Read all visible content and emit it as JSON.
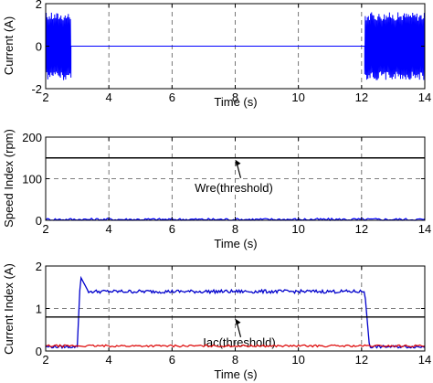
{
  "chart_data": [
    {
      "type": "line",
      "xlabel": "Time (s)",
      "ylabel": "Current (A)",
      "xlim": [
        2,
        14
      ],
      "ylim": [
        -2,
        2
      ],
      "xticks": [
        2,
        4,
        6,
        8,
        10,
        12,
        14
      ],
      "yticks": [
        -2,
        0,
        2
      ],
      "grid": "dashed",
      "series": [
        {
          "color": "#0000ff",
          "style": "oscillating",
          "segments": [
            {
              "x_start": 2.0,
              "x_end": 2.8,
              "amplitude": 1.6
            },
            {
              "x_start": 2.8,
              "x_end": 12.1,
              "amplitude": 0
            },
            {
              "x_start": 12.1,
              "x_end": 14.0,
              "amplitude": 1.6
            }
          ]
        }
      ]
    },
    {
      "type": "line",
      "xlabel": "Time (s)",
      "ylabel": "Speed Index (rpm)",
      "xlim": [
        2,
        14
      ],
      "ylim": [
        0,
        200
      ],
      "xticks": [
        2,
        4,
        6,
        8,
        10,
        12,
        14
      ],
      "yticks": [
        0,
        100,
        200
      ],
      "grid": "dashed",
      "series": [
        {
          "color": "#0000ff",
          "style": "noise",
          "level": 2,
          "noise": 3
        },
        {
          "color": "#000000",
          "style": "constant",
          "level": 150
        }
      ],
      "annotations": [
        {
          "text": "Wre(threshold)",
          "points_to": [
            8,
            150
          ]
        }
      ]
    },
    {
      "type": "line",
      "xlabel": "Time (s)",
      "ylabel": "Current Index (A)",
      "xlim": [
        2,
        14
      ],
      "ylim": [
        0,
        2
      ],
      "xticks": [
        2,
        4,
        6,
        8,
        10,
        12,
        14
      ],
      "yticks": [
        0,
        1,
        2
      ],
      "grid": "dashed",
      "series": [
        {
          "color": "#0000cc",
          "style": "pulse",
          "base": 0.1,
          "rise": 3.0,
          "peak_time": 3.1,
          "peak": 1.75,
          "plateau": 1.4,
          "fall": 12.1
        },
        {
          "color": "#dd0000",
          "style": "noise",
          "level": 0.12,
          "noise": 0.025
        },
        {
          "color": "#000000",
          "style": "constant",
          "level": 0.8
        }
      ],
      "annotations": [
        {
          "text": "Iac(threshold)",
          "points_to": [
            8,
            0.8
          ]
        }
      ]
    }
  ]
}
